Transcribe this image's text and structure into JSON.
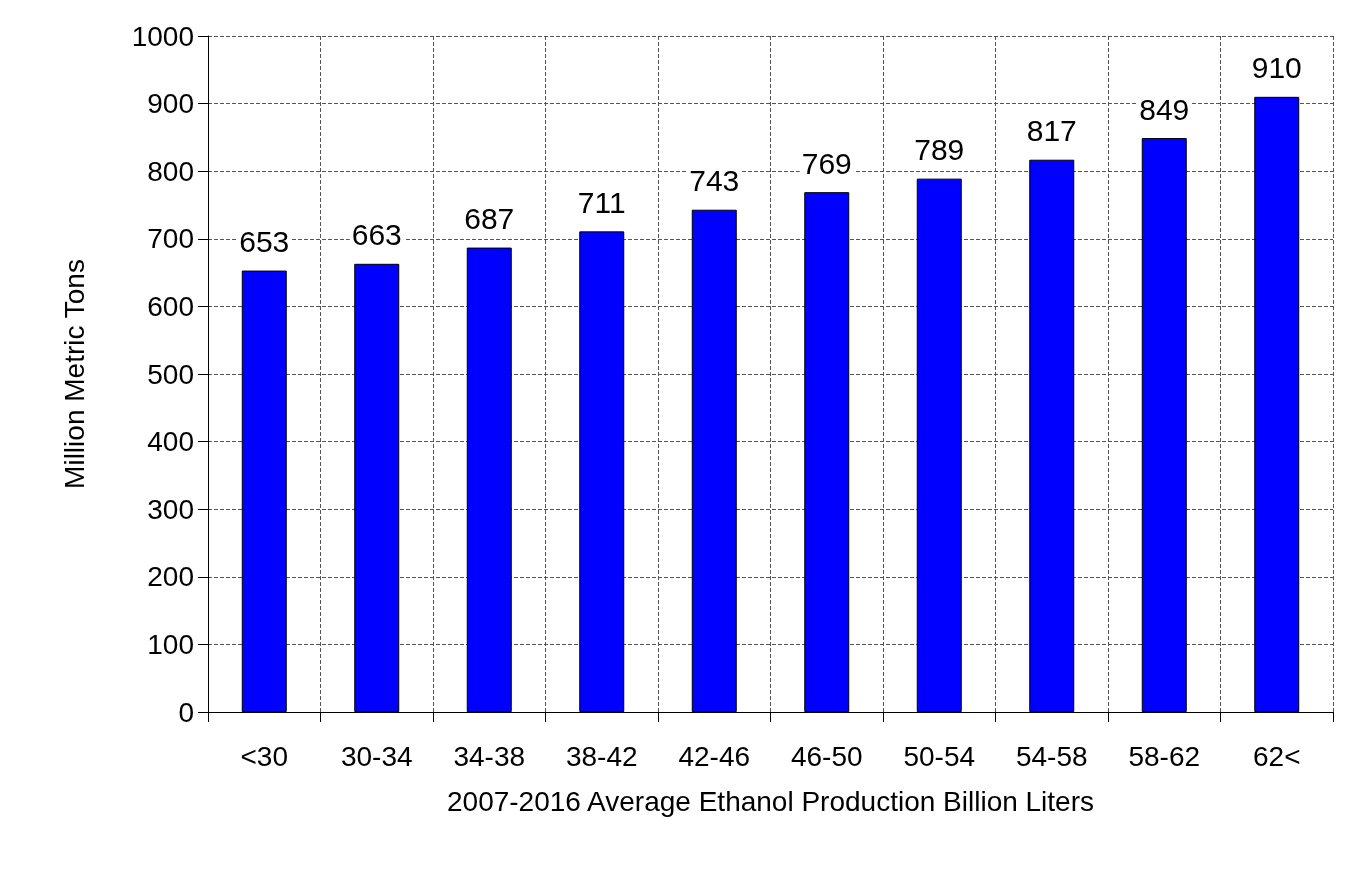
{
  "chart_data": {
    "type": "bar",
    "xlabel": "2007-2016 Average Ethanol Production Billion Liters",
    "ylabel": "Million Metric Tons",
    "categories": [
      "<30",
      "30-34",
      "34-38",
      "38-42",
      "42-46",
      "46-50",
      "50-54",
      "54-58",
      "58-62",
      "62<"
    ],
    "values": [
      653,
      663,
      687,
      711,
      743,
      769,
      789,
      817,
      849,
      910
    ],
    "color": "#0000ff",
    "ylim": [
      0,
      1000
    ],
    "yticks": [
      0,
      100,
      200,
      300,
      400,
      500,
      600,
      700,
      800,
      900,
      1000
    ],
    "grid": true,
    "data_labels": true
  }
}
